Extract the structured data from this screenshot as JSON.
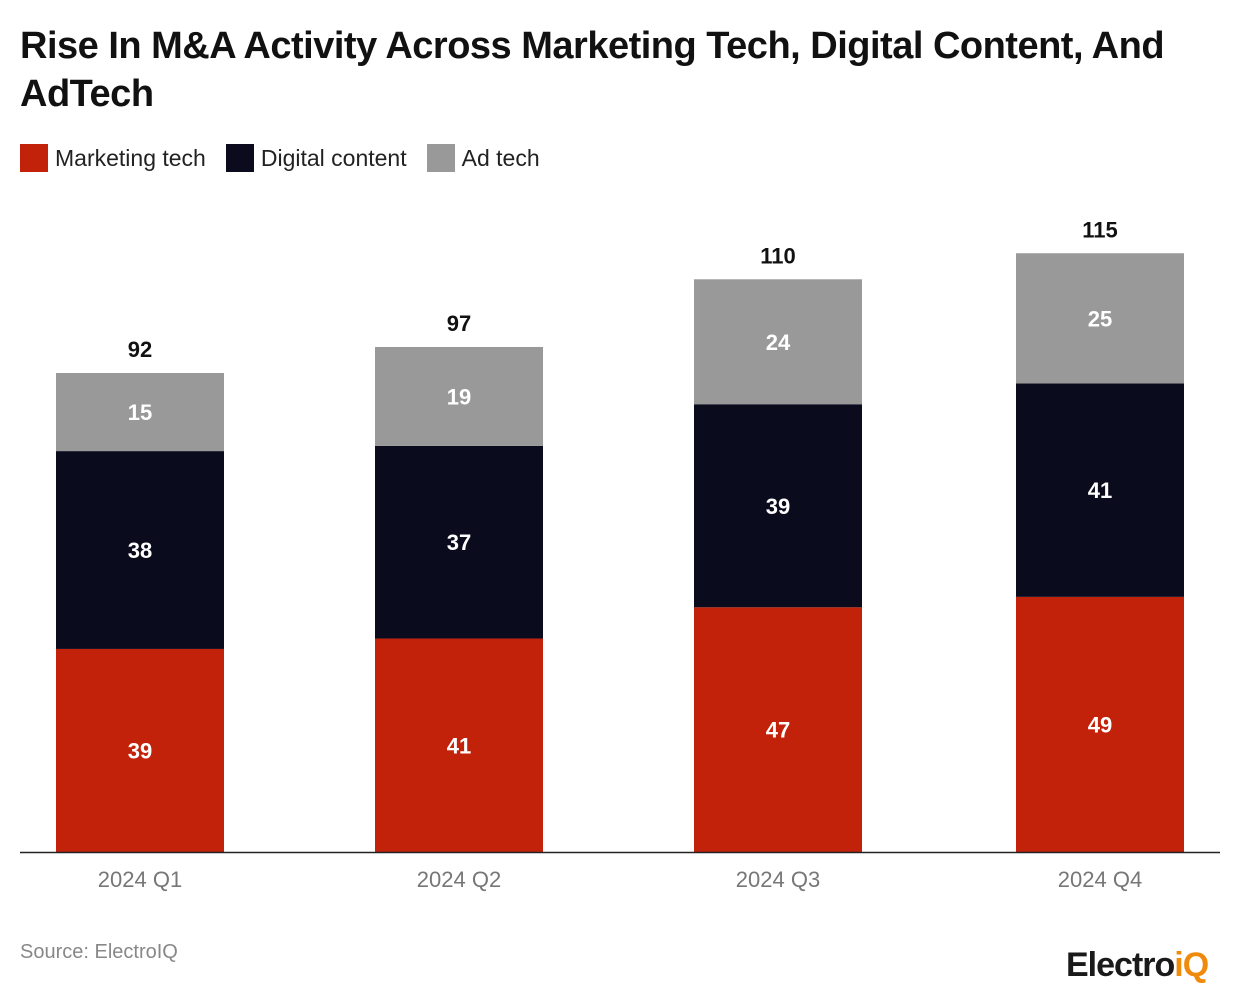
{
  "title": "Rise In M&A Activity Across Marketing Tech, Digital Content, And AdTech",
  "source": "Source: ElectroIQ",
  "logo": {
    "text": "Electro",
    "accent": "iQ"
  },
  "chart_data": {
    "type": "bar",
    "stacked": true,
    "title": "Rise In M&A Activity Across Marketing Tech, Digital Content, And AdTech",
    "xlabel": "",
    "ylabel": "",
    "categories": [
      "2024 Q1",
      "2024 Q2",
      "2024 Q3",
      "2024 Q4"
    ],
    "series": [
      {
        "name": "Marketing tech",
        "color": "#C3220A",
        "values": [
          39,
          41,
          47,
          49
        ]
      },
      {
        "name": "Digital content",
        "color": "#0B0B1E",
        "values": [
          38,
          37,
          39,
          41
        ]
      },
      {
        "name": "Ad tech",
        "color": "#999999",
        "values": [
          15,
          19,
          24,
          25
        ]
      }
    ],
    "totals": [
      92,
      97,
      110,
      115
    ],
    "ylim": [
      0,
      115
    ],
    "grid": false,
    "legend": "top-left"
  }
}
